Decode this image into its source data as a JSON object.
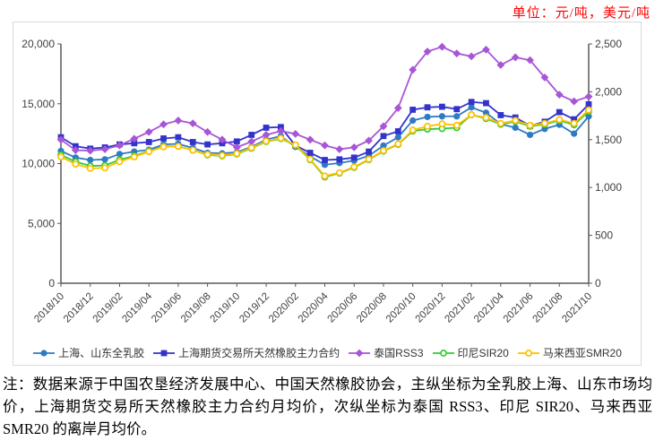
{
  "header": {
    "unit_label": "单位：元/吨，美元/吨"
  },
  "colors": {
    "axis": "#595959",
    "tick_label": "#404040",
    "frame_border": "#D9D9D9",
    "unit_text": "#FF0000",
    "legend_text": "#333333"
  },
  "chart_data": {
    "type": "line",
    "x": [
      "2018/10",
      "2018/11",
      "2018/12",
      "2019/01",
      "2019/02",
      "2019/03",
      "2019/04",
      "2019/05",
      "2019/06",
      "2019/07",
      "2019/08",
      "2019/09",
      "2019/10",
      "2019/11",
      "2019/12",
      "2020/01",
      "2020/02",
      "2020/03",
      "2020/04",
      "2020/05",
      "2020/06",
      "2020/07",
      "2020/08",
      "2020/09",
      "2020/10",
      "2020/11",
      "2020/12",
      "2021/01",
      "2021/02",
      "2021/03",
      "2021/04",
      "2021/05",
      "2021/06",
      "2021/07",
      "2021/08",
      "2021/09",
      "2021/10"
    ],
    "x_tick_interval": 2,
    "grid": false,
    "legend_position": "bottom",
    "left_axis": {
      "max": 20000,
      "ticks": [
        {
          "value": 0,
          "label": "0"
        },
        {
          "value": 5000,
          "label": "5,000"
        },
        {
          "value": 10000,
          "label": "10,000"
        },
        {
          "value": 15000,
          "label": "15,000"
        },
        {
          "value": 20000,
          "label": "20,000"
        }
      ]
    },
    "right_axis": {
      "max": 2500,
      "ticks": [
        {
          "value": 0,
          "label": "0"
        },
        {
          "value": 500,
          "label": "500"
        },
        {
          "value": 1000,
          "label": "1,000"
        },
        {
          "value": 1500,
          "label": "1,500"
        },
        {
          "value": 2000,
          "label": "2,000"
        },
        {
          "value": 2500,
          "label": "2,500"
        }
      ]
    },
    "series": [
      {
        "name": "上海、山东全乳胶",
        "slug": "shanghai-shandong-latex",
        "axis": "left",
        "color": "#2E7BC4",
        "marker": "circle",
        "values": [
          11050,
          10500,
          10300,
          10350,
          10800,
          11000,
          11150,
          11600,
          11650,
          11300,
          10900,
          10850,
          10950,
          11400,
          12000,
          12300,
          11400,
          10600,
          9900,
          10050,
          10250,
          10650,
          11500,
          12200,
          13600,
          13900,
          13950,
          13950,
          14700,
          14250,
          13300,
          13000,
          12400,
          12900,
          13250,
          12500,
          13950
        ]
      },
      {
        "name": "上海期货交易所天然橡胶主力合约",
        "slug": "shfe-rubber-futures",
        "axis": "left",
        "color": "#3333CC",
        "marker": "square",
        "values": [
          12200,
          11450,
          11250,
          11350,
          11600,
          11700,
          11800,
          12100,
          12200,
          11800,
          11600,
          11700,
          11850,
          12400,
          13000,
          13050,
          11500,
          10900,
          10300,
          10350,
          10500,
          11000,
          12300,
          12700,
          14500,
          14700,
          14750,
          14550,
          15150,
          15050,
          14050,
          13850,
          13150,
          13500,
          14300,
          13700,
          14950
        ]
      },
      {
        "name": "泰国RSS3",
        "slug": "thailand-rss3",
        "axis": "right",
        "color": "#A855D6",
        "marker": "diamond",
        "values": [
          1500,
          1390,
          1385,
          1400,
          1440,
          1510,
          1580,
          1660,
          1700,
          1670,
          1580,
          1500,
          1420,
          1480,
          1550,
          1590,
          1560,
          1500,
          1440,
          1400,
          1420,
          1490,
          1640,
          1830,
          2230,
          2420,
          2470,
          2400,
          2370,
          2440,
          2280,
          2360,
          2330,
          2150,
          1970,
          1900,
          1950
        ]
      },
      {
        "name": "印尼SIR20",
        "slug": "indonesia-sir20",
        "axis": "right",
        "color": "#33CC33",
        "marker": "circle-open",
        "values": [
          1340,
          1270,
          1225,
          1230,
          1290,
          1330,
          1380,
          1430,
          1430,
          1390,
          1340,
          1330,
          1350,
          1410,
          1480,
          1510,
          1440,
          1290,
          1110,
          1150,
          1210,
          1290,
          1380,
          1450,
          1590,
          1610,
          1615,
          1625,
          1760,
          1720,
          1660,
          1690,
          1640,
          1660,
          1700,
          1655,
          1795
        ]
      },
      {
        "name": "马来西亚SMR20",
        "slug": "malaysia-smr20",
        "axis": "right",
        "color": "#FFC000",
        "marker": "circle-open",
        "values": [
          1320,
          1245,
          1200,
          1205,
          1270,
          1320,
          1375,
          1425,
          1430,
          1390,
          1345,
          1335,
          1355,
          1415,
          1485,
          1515,
          1445,
          1295,
          1120,
          1155,
          1215,
          1295,
          1385,
          1455,
          1600,
          1640,
          1665,
          1650,
          1760,
          1730,
          1670,
          1700,
          1650,
          1670,
          1710,
          1670,
          1810
        ]
      }
    ]
  },
  "note": {
    "text": "注：数据来源于中国农垦经济发展中心、中国天然橡胶协会，主纵坐标为全乳胶上海、山东市场均价，上海期货交易所天然橡胶主力合约月均价，次纵坐标为泰国 RSS3、印尼 SIR20、马来西亚 SMR20 的离岸月均价。"
  }
}
